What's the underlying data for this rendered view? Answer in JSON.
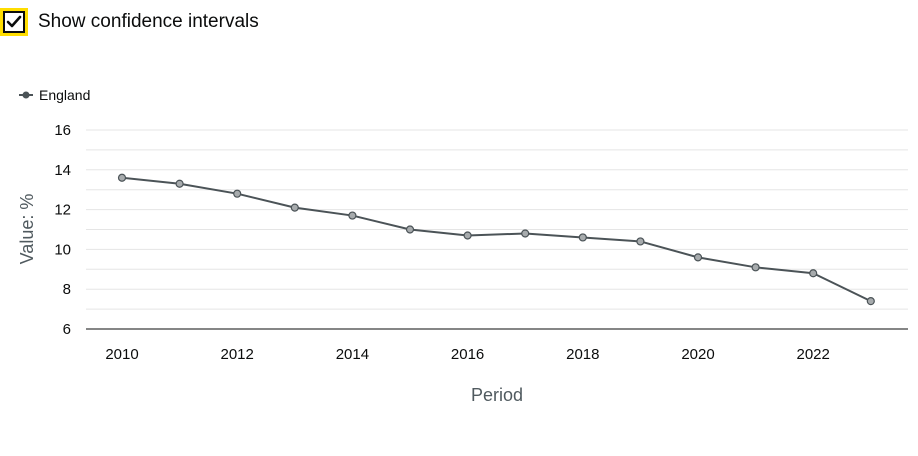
{
  "controls": {
    "confidence_toggle": {
      "label": "Show confidence intervals",
      "checked": true
    }
  },
  "colors": {
    "series": "#4b5357",
    "marker_fill": "#a7abad",
    "grid": "#e5e5e5",
    "axis": "#0b0c0c",
    "focus": "#ffdd00"
  },
  "chart_data": {
    "type": "line",
    "xlabel": "Period",
    "ylabel": "Value: %",
    "ylim": [
      6,
      16
    ],
    "yticks": [
      6,
      8,
      10,
      12,
      14,
      16
    ],
    "xticks": [
      2010,
      2012,
      2014,
      2016,
      2018,
      2020,
      2022
    ],
    "grid": true,
    "legend_position": "top-left",
    "series": [
      {
        "name": "England",
        "x": [
          2010,
          2011,
          2012,
          2013,
          2014,
          2015,
          2016,
          2017,
          2018,
          2019,
          2020,
          2021,
          2022,
          2023
        ],
        "values": [
          13.6,
          13.3,
          12.8,
          12.1,
          11.7,
          11.0,
          10.7,
          10.8,
          10.6,
          10.4,
          9.6,
          9.1,
          8.8,
          7.4
        ]
      }
    ]
  }
}
